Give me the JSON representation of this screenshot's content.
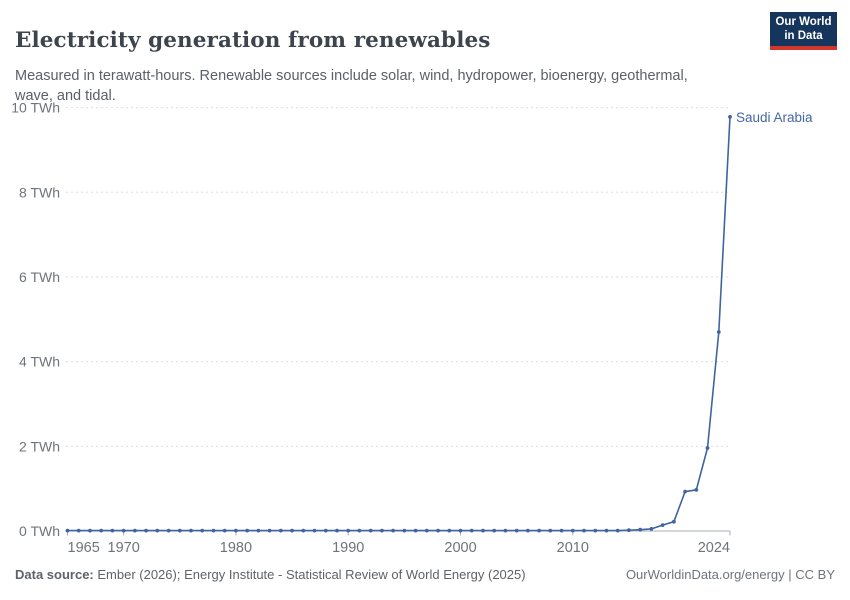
{
  "header": {
    "title": "Electricity generation from renewables",
    "subtitle": "Measured in terawatt-hours. Renewable sources include solar, wind, hydropower, bioenergy, geothermal, wave, and tidal."
  },
  "logo": {
    "line1": "Our World",
    "line2": "in Data",
    "bg_color": "#16355c",
    "bar_color": "#d2372c"
  },
  "chart_data": {
    "type": "line",
    "title": "Electricity generation from renewables",
    "ylabel": "",
    "xlabel": "",
    "unit": "TWh",
    "xlim": [
      1965,
      2024
    ],
    "ylim": [
      0,
      10
    ],
    "grid": "horizontal-dashed",
    "y_ticks": [
      0,
      2,
      4,
      6,
      8,
      10
    ],
    "y_tick_labels": [
      "0 TWh",
      "2 TWh",
      "4 TWh",
      "6 TWh",
      "8 TWh",
      "10 TWh"
    ],
    "x_ticks": [
      1965,
      1970,
      1980,
      1990,
      2000,
      2010,
      2024
    ],
    "x_tick_labels": [
      "1965",
      "1970",
      "1980",
      "1990",
      "2000",
      "2010",
      "2024"
    ],
    "series": [
      {
        "name": "Saudi Arabia",
        "color": "#4164a0",
        "start_year": 1965,
        "values": [
          0.01,
          0.01,
          0.01,
          0.01,
          0.01,
          0.01,
          0.01,
          0.01,
          0.01,
          0.01,
          0.01,
          0.01,
          0.01,
          0.01,
          0.01,
          0.01,
          0.01,
          0.01,
          0.01,
          0.01,
          0.01,
          0.01,
          0.01,
          0.01,
          0.01,
          0.01,
          0.01,
          0.01,
          0.01,
          0.01,
          0.01,
          0.01,
          0.01,
          0.01,
          0.01,
          0.01,
          0.01,
          0.01,
          0.01,
          0.01,
          0.01,
          0.01,
          0.01,
          0.01,
          0.01,
          0.01,
          0.01,
          0.01,
          0.01,
          0.01,
          0.02,
          0.03,
          0.05,
          0.14,
          0.22,
          0.93,
          0.97,
          1.96,
          4.7,
          9.78
        ]
      }
    ]
  },
  "footer": {
    "source_label": "Data source:",
    "source_text": " Ember (2026); Energy Institute - Statistical Review of World Energy (2025)",
    "attribution": "OurWorldinData.org/energy | CC BY"
  }
}
